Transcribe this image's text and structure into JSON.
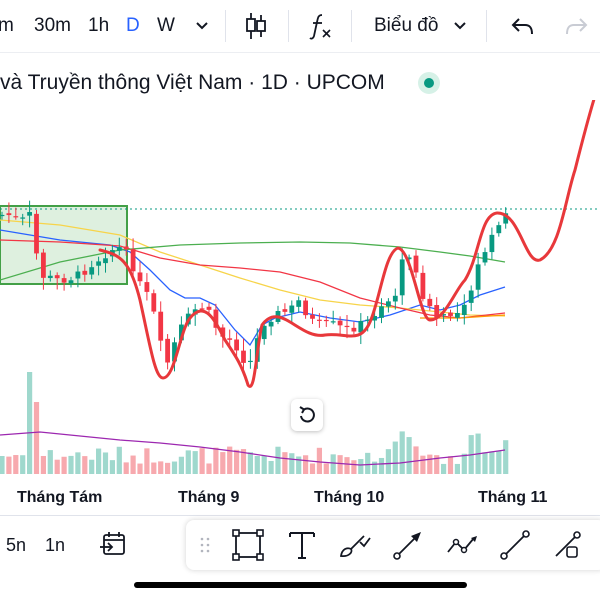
{
  "toolbar": {
    "intervals": [
      {
        "label": "m",
        "active": false
      },
      {
        "label": "30m",
        "active": false
      },
      {
        "label": "1h",
        "active": false
      },
      {
        "label": "D",
        "active": true
      },
      {
        "label": "W",
        "active": false
      }
    ],
    "chart_type_menu": "Biểu đồ",
    "icons": [
      "chevron-down-icon",
      "candlestick-icon",
      "function-icon",
      "undo-icon",
      "redo-icon"
    ]
  },
  "symbol": {
    "title": "và Truyền thông Việt Nam · 1D · UPCOM",
    "market_status_color": "#089981"
  },
  "x_axis": {
    "labels": [
      "Tháng Tám",
      "Tháng 9",
      "Tháng 10",
      "Tháng 11"
    ]
  },
  "bottom_bar": {
    "ranges": [
      "5n",
      "1n"
    ],
    "icons": [
      "calendar-goto-icon"
    ]
  },
  "drawing_tools": [
    "grip-icon",
    "rectangle-tool-icon",
    "text-tool-icon",
    "brush-tool-icon",
    "arrow-tool-icon",
    "path-tool-icon",
    "line-tool-icon",
    "pen-tool-icon"
  ],
  "colors": {
    "up": "#089981",
    "down": "#f23645",
    "volume_up": "#9fd8cd",
    "volume_down": "#f7a9ae",
    "ma_blue": "#2962ff",
    "ma_yellow": "#f7d44a",
    "ma_red": "#f23645",
    "ma_green": "#4caf50",
    "ma_orange": "#ff9800",
    "vol_ma": "#9c27b0",
    "drawing": "#e8383b",
    "box_border": "#43a047",
    "box_fill": "#c8e6c9"
  }
}
